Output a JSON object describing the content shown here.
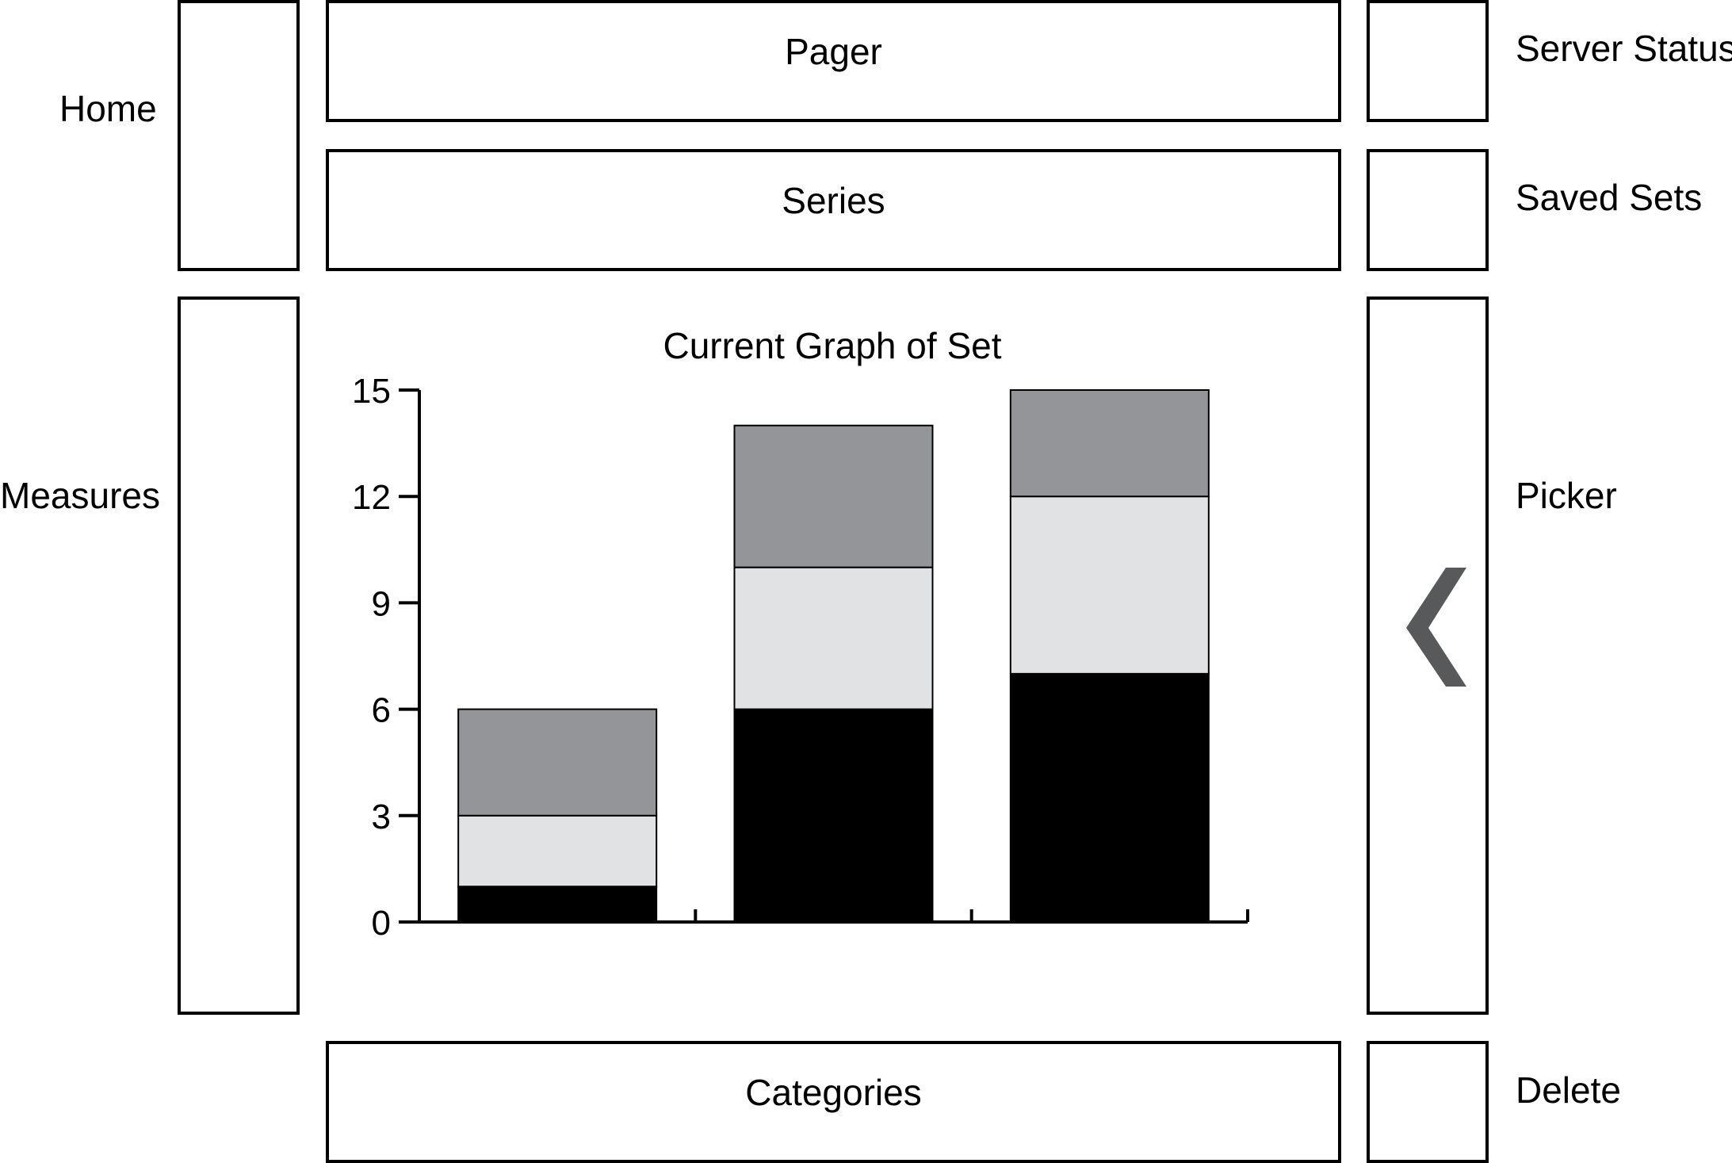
{
  "labels": {
    "home": "Home",
    "measures": "Measures",
    "server_status": "Server Status",
    "saved_sets": "Saved Sets",
    "picker": "Picker",
    "delete": "Delete"
  },
  "panels": {
    "pager": "Pager",
    "series": "Series",
    "categories": "Categories"
  },
  "icons": {
    "picker_toggle": "chevron-left-icon"
  },
  "colors": {
    "series_bottom": "#000000",
    "series_middle": "#e1e2e4",
    "series_top": "#949598",
    "chevron": "#58595b"
  },
  "chart_data": {
    "type": "bar",
    "stacked": true,
    "title": "Current Graph of Set",
    "categories": [
      "",
      "",
      ""
    ],
    "series": [
      {
        "values": [
          1,
          6,
          7
        ]
      },
      {
        "values": [
          2,
          4,
          5
        ]
      },
      {
        "values": [
          3,
          4,
          3
        ]
      }
    ],
    "ylim": [
      0,
      15
    ],
    "yticks": [
      0,
      3,
      6,
      9,
      12,
      15
    ],
    "grid": false
  }
}
